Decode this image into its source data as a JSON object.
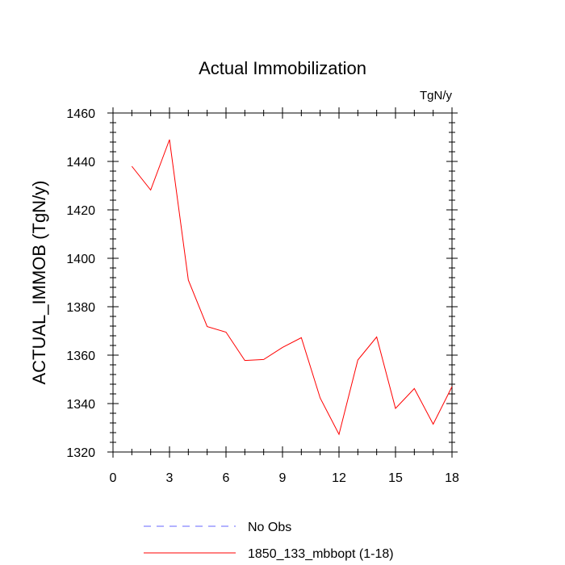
{
  "chart_data": {
    "type": "line",
    "title": "Actual Immobilization",
    "units_label": "TgN/y",
    "xlabel": "",
    "ylabel": "ACTUAL_IMMOB  (TgN/y)",
    "xlim": [
      0,
      18
    ],
    "ylim": [
      1320,
      1460
    ],
    "x_ticks": [
      0,
      3,
      6,
      9,
      12,
      15,
      18
    ],
    "y_ticks": [
      1320,
      1340,
      1360,
      1380,
      1400,
      1420,
      1440,
      1460
    ],
    "grid": false,
    "series": [
      {
        "name": "1850_133_mbbopt (1-18)",
        "color": "#ff0000",
        "style": "solid",
        "x": [
          1,
          2,
          3,
          4,
          5,
          6,
          7,
          8,
          9,
          10,
          11,
          12,
          13,
          14,
          15,
          16,
          17,
          18
        ],
        "values": [
          1438,
          1428.2,
          1449,
          1391,
          1371.8,
          1369.5,
          1357.8,
          1358.2,
          1363.2,
          1367.2,
          1342.3,
          1327.3,
          1358,
          1367.5,
          1338,
          1346.2,
          1331.5,
          1347
        ]
      }
    ],
    "legend": {
      "placement": "bottom",
      "entries": [
        {
          "label": "No Obs",
          "color": "#6666ff",
          "style": "dashed"
        },
        {
          "label": "1850_133_mbbopt (1-18)",
          "color": "#ff0000",
          "style": "solid"
        }
      ]
    }
  }
}
